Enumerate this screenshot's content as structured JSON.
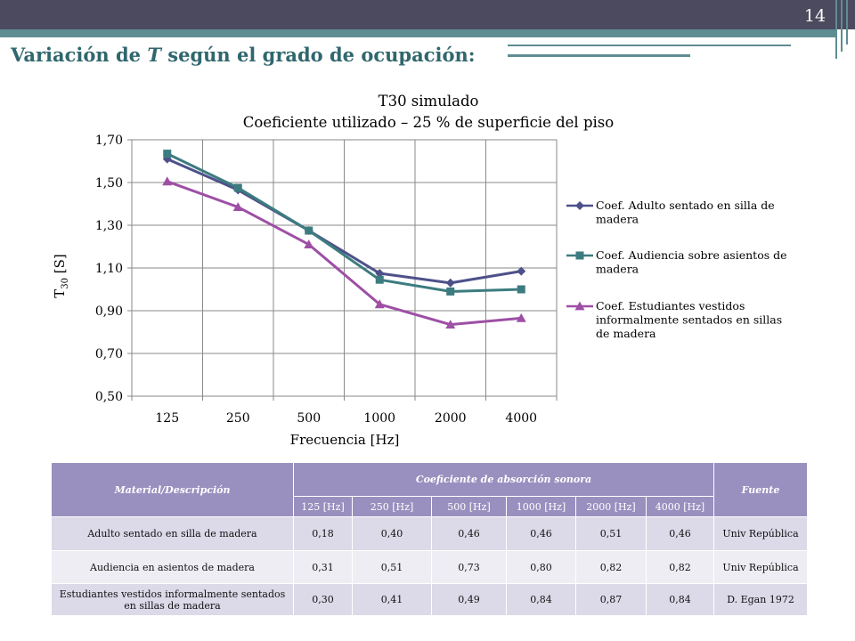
{
  "slide": {
    "number": "14",
    "title_prefix": "Variación de ",
    "title_italic": "T",
    "title_suffix": " según el grado de ocupación:"
  },
  "colors": {
    "banner_dark": "#4b4a5e",
    "banner_teal": "#5e8d92",
    "title": "#30676e",
    "table_header": "#9a90bf"
  },
  "chart_data": {
    "type": "line",
    "title": "T30 simulado",
    "subtitle": "Coeficiente utilizado – 25 % de superficie del piso",
    "xlabel": "Frecuencia [Hz]",
    "ylabel_main": "T",
    "ylabel_sub": "30",
    "ylabel_unit": " [S]",
    "categories": [
      "125",
      "250",
      "500",
      "1000",
      "2000",
      "4000"
    ],
    "yticks": [
      "0,50",
      "0,70",
      "0,90",
      "1,10",
      "1,30",
      "1,50",
      "1,70"
    ],
    "ylim": [
      0.5,
      1.7
    ],
    "grid": true,
    "legend_position": "right",
    "series": [
      {
        "name": "Coef. Adulto sentado en silla de madera",
        "legend_lines": [
          "Coef. Adulto sentado en silla de",
          "madera"
        ],
        "marker": "diamond",
        "color": "#4e5189",
        "values": [
          1.61,
          1.465,
          1.275,
          1.075,
          1.03,
          1.085
        ]
      },
      {
        "name": "Coef. Audiencia sobre asientos de madera",
        "legend_lines": [
          "Coef. Audiencia sobre asientos de",
          "madera"
        ],
        "marker": "square",
        "color": "#3c7c80",
        "values": [
          1.635,
          1.475,
          1.275,
          1.045,
          0.99,
          1.0
        ]
      },
      {
        "name": "Coef. Estudiantes vestidos informalmente sentados en sillas de madera",
        "legend_lines": [
          " Coef. Estudiantes vestidos",
          "informalmente sentados en sillas",
          "de madera"
        ],
        "marker": "triangle",
        "color": "#9e4fa5",
        "values": [
          1.505,
          1.385,
          1.21,
          0.93,
          0.835,
          0.865
        ]
      }
    ]
  },
  "table": {
    "header_material": "Material/Descripción",
    "header_coef": "Coeficiente de absorción sonora",
    "header_source": "Fuente",
    "freqs": [
      "125 [Hz]",
      "250 [Hz]",
      "500 [Hz]",
      "1000 [Hz]",
      "2000 [Hz]",
      "4000 [Hz]"
    ],
    "rows": [
      {
        "material": "Adulto sentado en silla de madera",
        "values": [
          "0,18",
          "0,40",
          "0,46",
          "0,46",
          "0,51",
          "0,46"
        ],
        "source": "Univ República"
      },
      {
        "material": "Audiencia en asientos de madera",
        "values": [
          "0,31",
          "0,51",
          "0,73",
          "0,80",
          "0,82",
          "0,82"
        ],
        "source": "Univ República"
      },
      {
        "material": "Estudiantes vestidos informalmente sentados en sillas de madera",
        "values": [
          "0,30",
          "0,41",
          "0,49",
          "0,84",
          "0,87",
          "0,84"
        ],
        "source": "D. Egan 1972"
      }
    ]
  }
}
